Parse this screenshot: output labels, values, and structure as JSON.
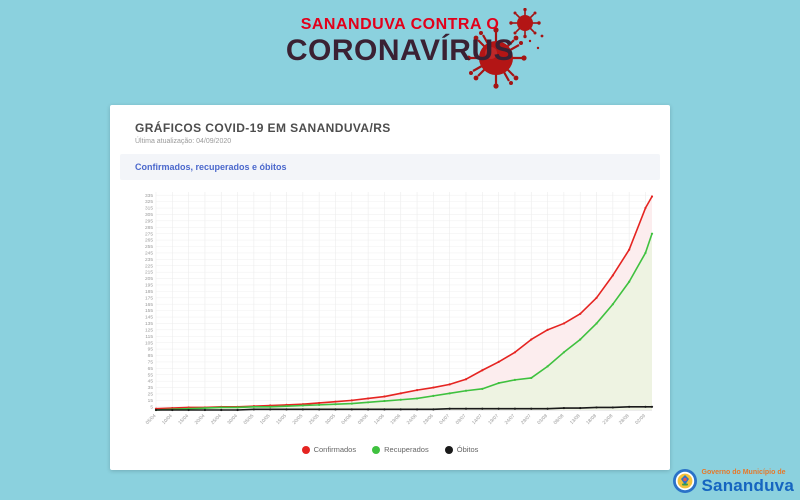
{
  "page": {
    "background": "#8bd1de"
  },
  "header": {
    "line1": "SANANDUVA CONTRA O",
    "line2": "CORONAVÍRUS",
    "line1_color": "#e2001a",
    "line2_color": "#3a2133"
  },
  "card": {
    "title": "GRÁFICOS COVID-19 EM SANANDUVA/RS",
    "updated": "Última atualização: 04/09/2020",
    "section_title": "Confirmados, recuperados e óbitos"
  },
  "footer_logo": {
    "line1": "Governo do Município de",
    "line2": "Sananduva"
  },
  "chart_data": {
    "type": "line",
    "title": "Confirmados, recuperados e óbitos",
    "grid": true,
    "legend_position": "bottom",
    "ylim": [
      0,
      340
    ],
    "y_ticks": {
      "min": 5,
      "max": 335,
      "step": 10
    },
    "x_tick_labels": [
      "05/04",
      "10/04",
      "15/04",
      "20/04",
      "25/04",
      "30/04",
      "05/05",
      "10/05",
      "15/05",
      "20/05",
      "25/05",
      "30/05",
      "04/06",
      "09/06",
      "14/06",
      "19/06",
      "24/06",
      "29/06",
      "04/07",
      "09/07",
      "14/07",
      "19/07",
      "24/07",
      "29/07",
      "03/08",
      "08/08",
      "13/08",
      "18/08",
      "23/08",
      "28/08",
      "02/09"
    ],
    "x_tick_days": [
      0,
      5,
      10,
      15,
      20,
      25,
      30,
      35,
      40,
      45,
      50,
      55,
      60,
      65,
      70,
      75,
      80,
      85,
      90,
      95,
      100,
      105,
      110,
      115,
      120,
      125,
      130,
      135,
      140,
      145,
      150
    ],
    "days": [
      0,
      5,
      10,
      15,
      20,
      25,
      30,
      35,
      40,
      45,
      50,
      55,
      60,
      65,
      70,
      75,
      80,
      85,
      90,
      95,
      100,
      105,
      110,
      115,
      120,
      125,
      130,
      135,
      140,
      145,
      150,
      152
    ],
    "series": [
      {
        "name": "Confirmados",
        "color": "#e52421",
        "fill": "#fcedee",
        "values": [
          2,
          3,
          4,
          4,
          5,
          5,
          6,
          7,
          8,
          9,
          11,
          13,
          15,
          18,
          21,
          26,
          31,
          35,
          40,
          48,
          62,
          75,
          90,
          110,
          125,
          135,
          150,
          175,
          210,
          250,
          315,
          333
        ]
      },
      {
        "name": "Recuperados",
        "color": "#3fc13f",
        "fill": "#eef3e2",
        "values": [
          0,
          1,
          2,
          3,
          4,
          4,
          5,
          5,
          6,
          7,
          8,
          9,
          10,
          12,
          14,
          16,
          18,
          22,
          26,
          30,
          33,
          42,
          47,
          50,
          68,
          90,
          110,
          135,
          165,
          200,
          245,
          275
        ]
      },
      {
        "name": "Óbitos",
        "color": "#1a1a1a",
        "fill": "none",
        "values": [
          0,
          0,
          0,
          0,
          0,
          0,
          1,
          1,
          1,
          1,
          1,
          1,
          1,
          1,
          1,
          1,
          1,
          1,
          2,
          2,
          2,
          2,
          2,
          2,
          2,
          3,
          3,
          4,
          4,
          5,
          5,
          5
        ]
      }
    ]
  }
}
